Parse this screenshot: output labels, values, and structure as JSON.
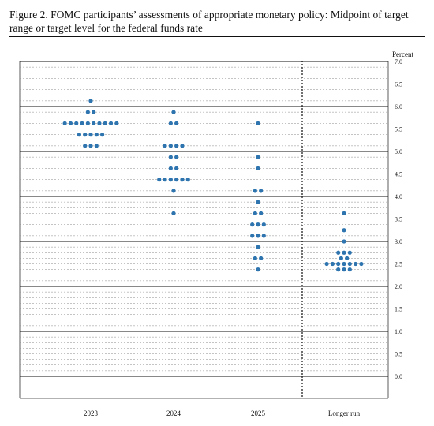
{
  "title": "Figure 2.  FOMC participants’ assessments of appropriate monetary policy:  Midpoint of target range or target level for the federal funds rate",
  "chart_data": {
    "type": "scatter",
    "title": "Figure 2.  FOMC participants’ assessments of appropriate monetary policy:  Midpoint of target range or target level for the federal funds rate",
    "ylabel": "Percent",
    "ylim": [
      0,
      7.0
    ],
    "grid": true,
    "y_ticks": [
      "0.0",
      "0.5",
      "1.0",
      "1.5",
      "2.0",
      "2.5",
      "3.0",
      "3.5",
      "4.0",
      "4.5",
      "5.0",
      "5.5",
      "6.0",
      "6.5",
      "7.0"
    ],
    "categories": [
      "2023",
      "2024",
      "2025",
      "Longer run"
    ],
    "dot_color": "#2e75b0",
    "points": [
      {
        "category": "2023",
        "rows": [
          {
            "y": 6.125,
            "count": 1
          },
          {
            "y": 5.875,
            "count": 2
          },
          {
            "y": 5.625,
            "count": 10
          },
          {
            "y": 5.375,
            "count": 5
          },
          {
            "y": 5.125,
            "count": 3
          }
        ]
      },
      {
        "category": "2024",
        "rows": [
          {
            "y": 5.875,
            "count": 1
          },
          {
            "y": 5.625,
            "count": 2
          },
          {
            "y": 5.125,
            "count": 4
          },
          {
            "y": 4.875,
            "count": 2
          },
          {
            "y": 4.625,
            "count": 2
          },
          {
            "y": 4.375,
            "count": 6
          },
          {
            "y": 4.125,
            "count": 1
          },
          {
            "y": 3.625,
            "count": 1
          }
        ]
      },
      {
        "category": "2025",
        "rows": [
          {
            "y": 5.625,
            "count": 1
          },
          {
            "y": 4.875,
            "count": 1
          },
          {
            "y": 4.625,
            "count": 1
          },
          {
            "y": 4.125,
            "count": 2
          },
          {
            "y": 3.875,
            "count": 1
          },
          {
            "y": 3.625,
            "count": 2
          },
          {
            "y": 3.375,
            "count": 3
          },
          {
            "y": 3.125,
            "count": 3
          },
          {
            "y": 2.875,
            "count": 1
          },
          {
            "y": 2.625,
            "count": 2
          },
          {
            "y": 2.375,
            "count": 1
          }
        ]
      },
      {
        "category": "Longer run",
        "rows": [
          {
            "y": 3.625,
            "count": 1
          },
          {
            "y": 3.25,
            "count": 1
          },
          {
            "y": 3.0,
            "count": 1
          },
          {
            "y": 2.75,
            "count": 3
          },
          {
            "y": 2.625,
            "count": 2
          },
          {
            "y": 2.5,
            "count": 7
          },
          {
            "y": 2.375,
            "count": 3
          }
        ]
      }
    ]
  }
}
